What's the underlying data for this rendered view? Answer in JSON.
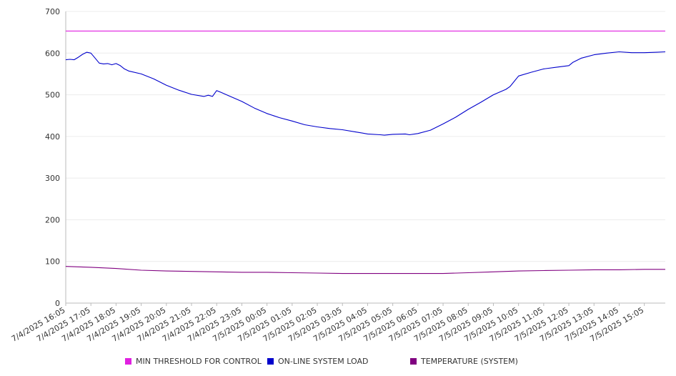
{
  "chart_data": {
    "type": "line",
    "ylim": [
      0,
      700
    ],
    "yticks": [
      0,
      100,
      200,
      300,
      400,
      500,
      600,
      700
    ],
    "x_tick_labels": [
      "7/4/2025 16:05",
      "7/4/2025 17:05",
      "7/4/2025 18:05",
      "7/4/2025 19:05",
      "7/4/2025 20:05",
      "7/4/2025 21:05",
      "7/4/2025 22:05",
      "7/4/2025 23:05",
      "7/5/2025 00:05",
      "7/5/2025 01:05",
      "7/5/2025 02:05",
      "7/5/2025 03:05",
      "7/5/2025 04:05",
      "7/5/2025 05:05",
      "7/5/2025 06:05",
      "7/5/2025 07:05",
      "7/5/2025 08:05",
      "7/5/2025 09:05",
      "7/5/2025 10:05",
      "7/5/2025 11:05",
      "7/5/2025 12:05",
      "7/5/2025 13:05",
      "7/5/2025 14:05",
      "7/5/2025 15:05"
    ],
    "x_end": "7/5/2025 15:55",
    "grid": true,
    "legend_position": "bottom",
    "series": [
      {
        "name": "MIN THRESHOLD FOR CONTROL",
        "color": "#e020e0",
        "x": [
          "7/4/2025 16:05",
          "7/5/2025 15:55"
        ],
        "y": [
          653,
          653
        ]
      },
      {
        "name": "ON-LINE SYSTEM LOAD",
        "color": "#0000cc",
        "x": [
          "7/4/2025 16:05",
          "7/4/2025 16:15",
          "7/4/2025 16:25",
          "7/4/2025 16:35",
          "7/4/2025 16:45",
          "7/4/2025 16:55",
          "7/4/2025 17:05",
          "7/4/2025 17:15",
          "7/4/2025 17:25",
          "7/4/2025 17:35",
          "7/4/2025 17:45",
          "7/4/2025 17:55",
          "7/4/2025 18:05",
          "7/4/2025 18:15",
          "7/4/2025 18:25",
          "7/4/2025 18:35",
          "7/4/2025 19:05",
          "7/4/2025 19:35",
          "7/4/2025 20:05",
          "7/4/2025 20:35",
          "7/4/2025 21:05",
          "7/4/2025 21:35",
          "7/4/2025 21:45",
          "7/4/2025 21:55",
          "7/4/2025 22:05",
          "7/4/2025 22:15",
          "7/4/2025 22:35",
          "7/4/2025 23:05",
          "7/4/2025 23:35",
          "7/5/2025 00:05",
          "7/5/2025 00:35",
          "7/5/2025 01:05",
          "7/5/2025 01:35",
          "7/5/2025 02:05",
          "7/5/2025 02:35",
          "7/5/2025 03:05",
          "7/5/2025 03:35",
          "7/5/2025 04:05",
          "7/5/2025 04:35",
          "7/5/2025 04:45",
          "7/5/2025 05:05",
          "7/5/2025 05:35",
          "7/5/2025 05:45",
          "7/5/2025 06:05",
          "7/5/2025 06:35",
          "7/5/2025 07:05",
          "7/5/2025 07:35",
          "7/5/2025 08:05",
          "7/5/2025 08:35",
          "7/5/2025 09:05",
          "7/5/2025 09:35",
          "7/5/2025 09:45",
          "7/5/2025 10:05",
          "7/5/2025 10:35",
          "7/5/2025 11:05",
          "7/5/2025 11:35",
          "7/5/2025 12:05",
          "7/5/2025 12:15",
          "7/5/2025 12:35",
          "7/5/2025 13:05",
          "7/5/2025 13:35",
          "7/5/2025 14:05",
          "7/5/2025 14:35",
          "7/5/2025 15:05",
          "7/5/2025 15:35",
          "7/5/2025 15:55"
        ],
        "y": [
          584,
          585,
          584,
          590,
          597,
          602,
          600,
          588,
          576,
          574,
          575,
          572,
          575,
          570,
          562,
          557,
          550,
          538,
          523,
          511,
          501,
          496,
          499,
          496,
          510,
          506,
          497,
          484,
          468,
          455,
          445,
          437,
          428,
          423,
          419,
          416,
          411,
          406,
          404,
          403,
          405,
          406,
          404,
          407,
          415,
          430,
          446,
          465,
          482,
          500,
          513,
          520,
          545,
          554,
          562,
          566,
          570,
          578,
          588,
          596,
          600,
          603,
          601,
          601,
          602,
          603
        ]
      },
      {
        "name": "TEMPERATURE (SYSTEM)",
        "color": "#800080",
        "x": [
          "7/4/2025 16:05",
          "7/4/2025 17:05",
          "7/4/2025 18:05",
          "7/4/2025 19:05",
          "7/4/2025 20:05",
          "7/4/2025 21:05",
          "7/4/2025 22:05",
          "7/4/2025 23:05",
          "7/5/2025 00:05",
          "7/5/2025 01:05",
          "7/5/2025 02:05",
          "7/5/2025 03:05",
          "7/5/2025 04:05",
          "7/5/2025 05:05",
          "7/5/2025 06:05",
          "7/5/2025 07:05",
          "7/5/2025 08:05",
          "7/5/2025 09:05",
          "7/5/2025 10:05",
          "7/5/2025 11:05",
          "7/5/2025 12:05",
          "7/5/2025 13:05",
          "7/5/2025 14:05",
          "7/5/2025 15:05",
          "7/5/2025 15:55"
        ],
        "y": [
          88,
          86,
          83,
          79,
          77,
          76,
          75,
          74,
          74,
          73,
          72,
          71,
          71,
          71,
          71,
          71,
          73,
          75,
          77,
          78,
          79,
          80,
          80,
          81,
          81
        ]
      }
    ]
  },
  "legend": {
    "items": [
      {
        "label": "MIN THRESHOLD FOR CONTROL",
        "color": "#e020e0"
      },
      {
        "label": "ON-LINE SYSTEM LOAD",
        "color": "#0000cc"
      },
      {
        "label": "TEMPERATURE (SYSTEM)",
        "color": "#800080"
      }
    ]
  }
}
